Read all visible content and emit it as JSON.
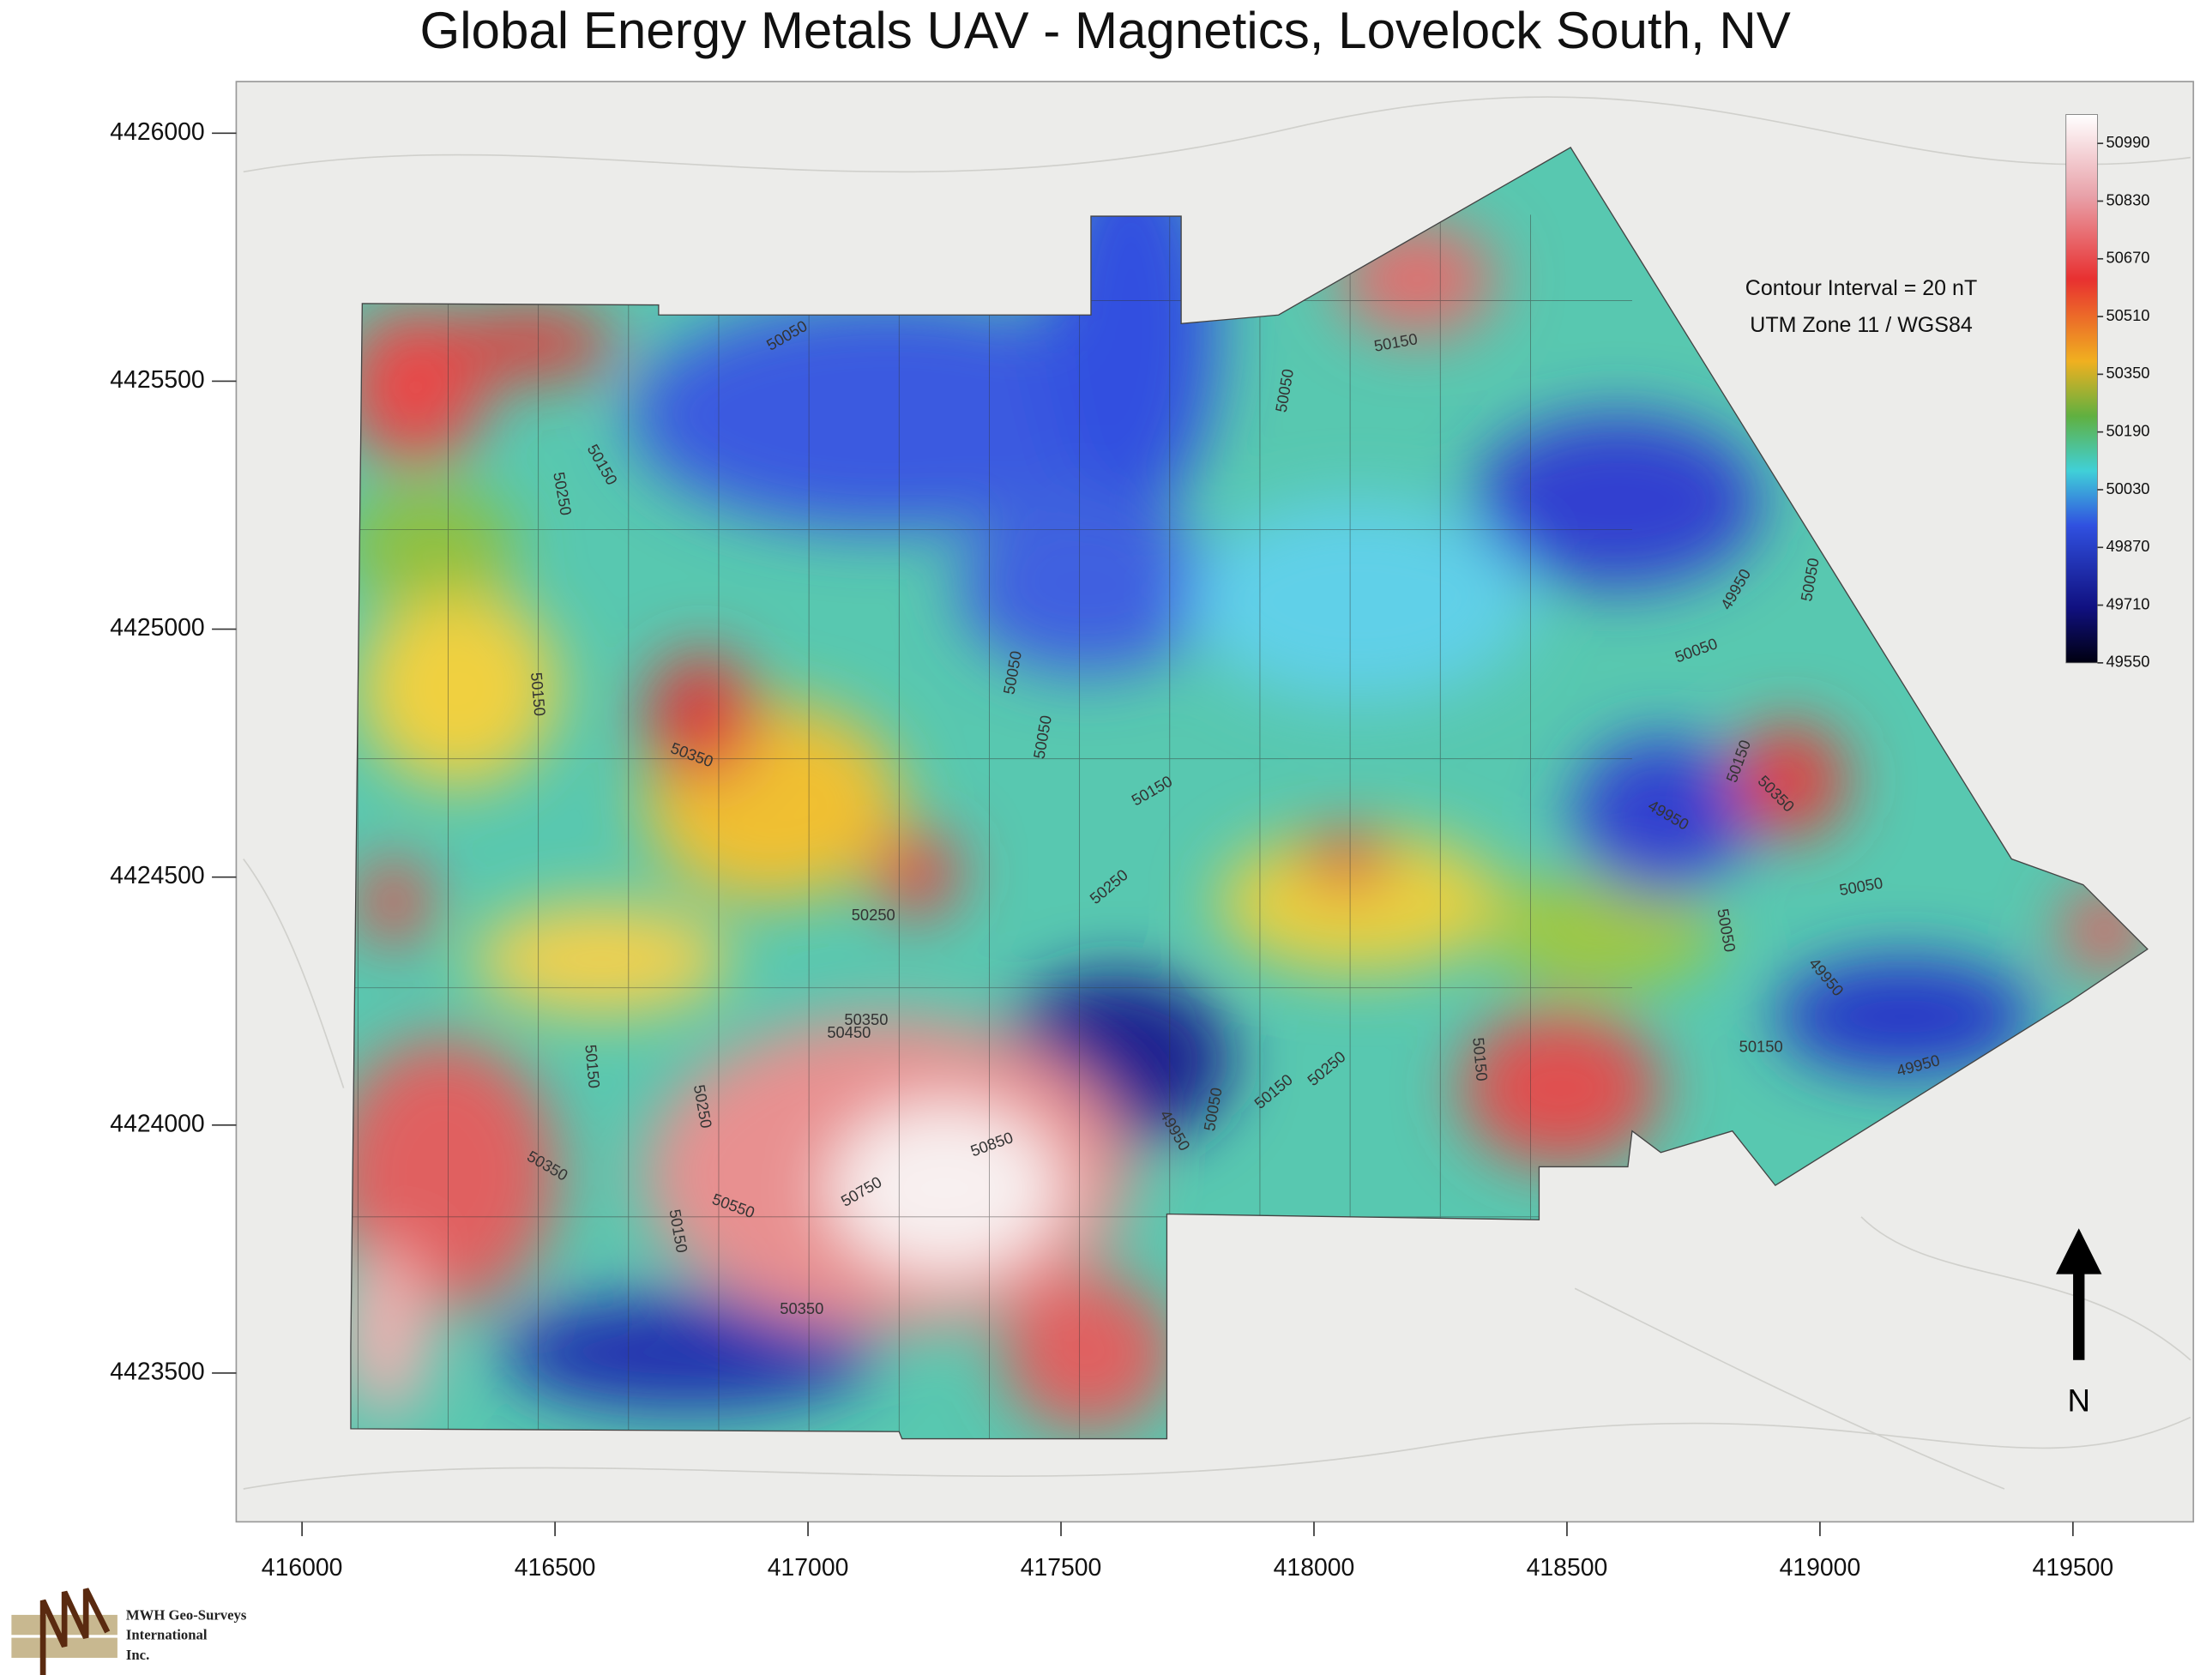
{
  "title": "Global Energy Metals UAV - Magnetics, Lovelock South, NV",
  "map": {
    "xlim": [
      415870,
      419738
    ],
    "ylim": [
      4423200,
      4426104
    ],
    "xticks": [
      416000,
      416500,
      417000,
      417500,
      418000,
      418500,
      419000,
      419500
    ],
    "yticks": [
      4423500,
      4424000,
      4424500,
      4425000,
      4425500,
      4426000
    ],
    "colorbar": {
      "lim": [
        49550,
        51070
      ],
      "ticks": [
        50990,
        50830,
        50670,
        50510,
        50350,
        50190,
        50030,
        49870,
        49710,
        49550
      ]
    },
    "notes": [
      "Contour Interval = 20 nT",
      "UTM Zone 11 / WGS84"
    ],
    "contour_labels": [
      50050,
      50150,
      50250,
      50150,
      50350,
      50050,
      50050,
      50150,
      50250,
      50250,
      50350,
      50450,
      50150,
      50250,
      50350,
      50850,
      50750,
      50550,
      50150,
      50350,
      49950,
      50050,
      50150,
      50250,
      50150,
      50150,
      50050,
      49950,
      50050,
      50050,
      49950,
      50150,
      50350,
      50050,
      50050,
      49950,
      50150,
      49950
    ],
    "north": "N"
  },
  "logo": {
    "lines": [
      "MWH Geo-Surveys",
      "International",
      "Inc."
    ]
  }
}
